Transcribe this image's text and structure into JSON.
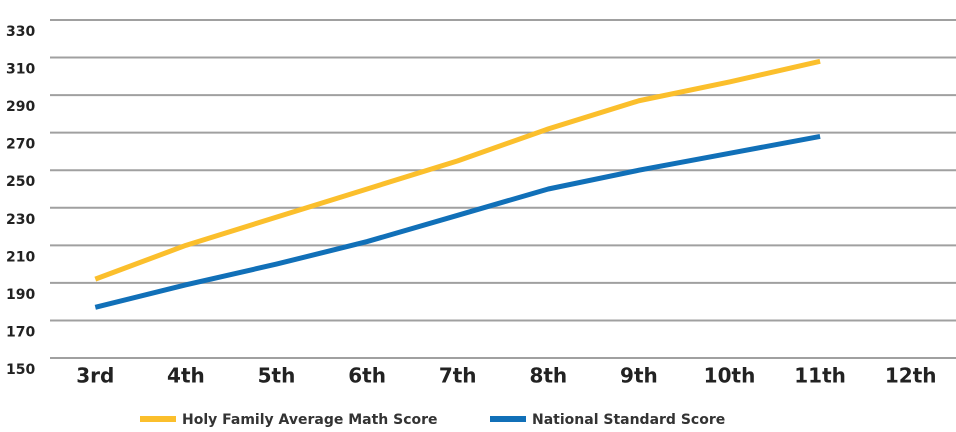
{
  "chart_data": {
    "type": "line",
    "categories": [
      "3rd",
      "4th",
      "5th",
      "6th",
      "7th",
      "8th",
      "9th",
      "10th",
      "11th",
      "12th"
    ],
    "series": [
      {
        "name": "Holy Family Average Math Score",
        "color": "#fbbf2c",
        "values": [
          192,
          210,
          225,
          240,
          255,
          272,
          287,
          297,
          308,
          null
        ]
      },
      {
        "name": "National Standard Score",
        "color": "#1170b8",
        "values": [
          177,
          189,
          200,
          212,
          226,
          240,
          250,
          259,
          268,
          null
        ]
      }
    ],
    "ylim": [
      150,
      330
    ],
    "yticks": [
      150,
      170,
      190,
      210,
      230,
      250,
      270,
      290,
      310,
      330
    ],
    "grid": true
  }
}
